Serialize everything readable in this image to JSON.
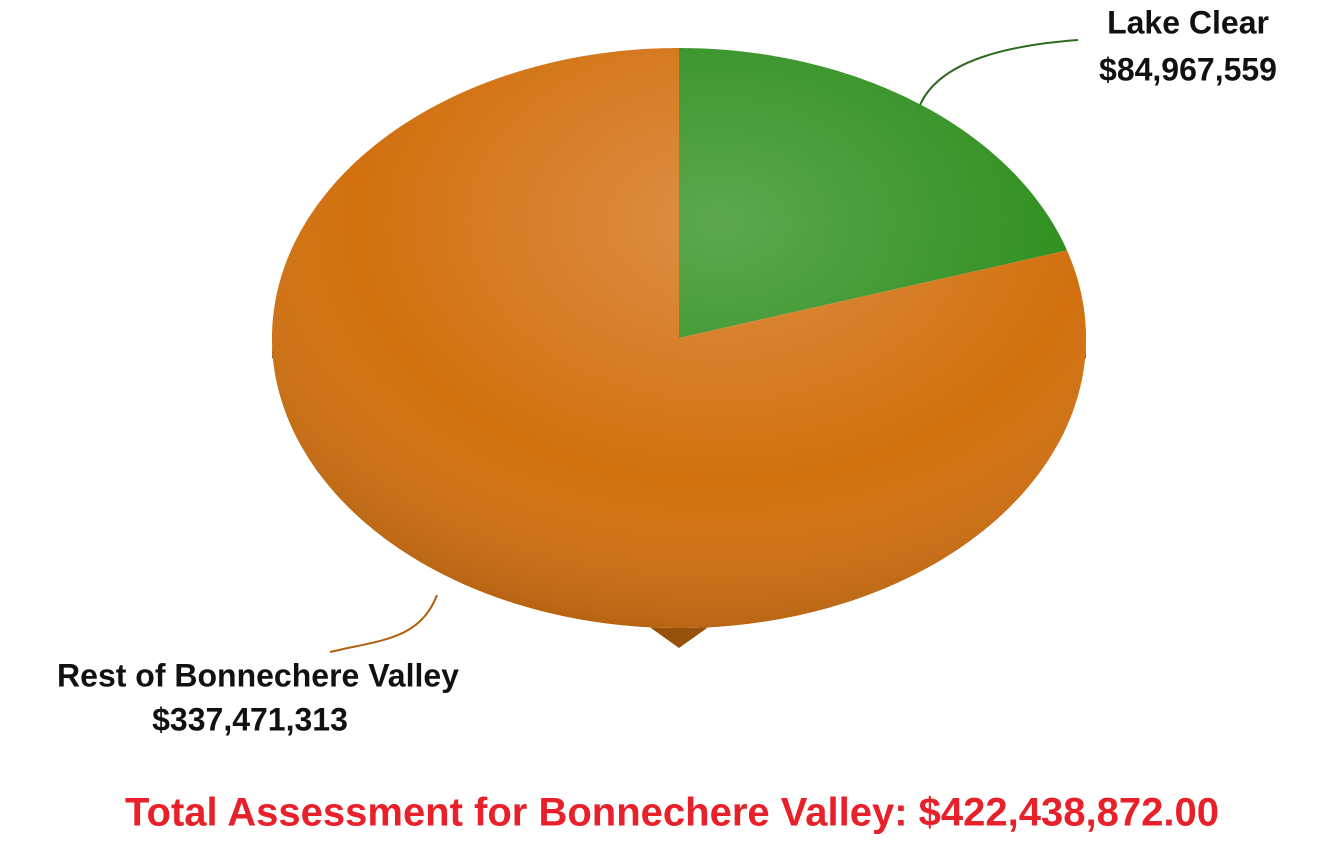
{
  "chart_data": {
    "type": "pie",
    "categories": [
      "Lake Clear",
      "Rest of Bonnechere Valley"
    ],
    "values": [
      84967559,
      337471313
    ],
    "value_labels": [
      "$84,967,559",
      "$337,471,313"
    ],
    "colors": [
      "#2f8f1e",
      "#d2700f"
    ],
    "annotation": "Total Assessment for Bonnechere Valley:  $422,438,872.00"
  }
}
